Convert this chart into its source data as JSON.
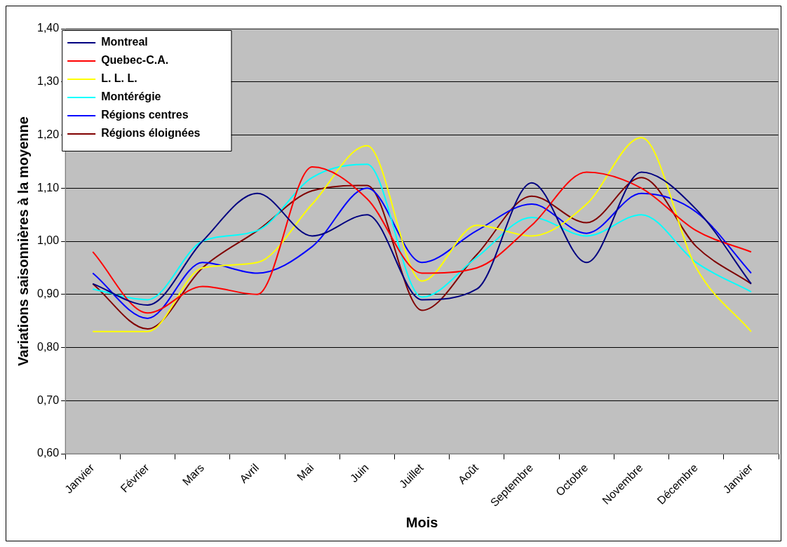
{
  "chart_data": {
    "type": "line",
    "xlabel": "Mois",
    "ylabel": "Variations saisonnières à la moyenne",
    "categories": [
      "Janvier",
      "Février",
      "Mars",
      "Avril",
      "Mai",
      "Juin",
      "Juillet",
      "Août",
      "Septembre",
      "Octobre",
      "Novembre",
      "Décembre",
      "Janvier"
    ],
    "series": [
      {
        "name": "Montreal",
        "color": "#000080",
        "values": [
          0.92,
          0.88,
          1.0,
          1.09,
          1.01,
          1.05,
          0.89,
          0.91,
          1.11,
          0.96,
          1.13,
          1.06,
          0.92
        ]
      },
      {
        "name": "Quebec-C.A.",
        "color": "#ff0000",
        "values": [
          0.98,
          0.865,
          0.915,
          0.9,
          1.14,
          1.08,
          0.94,
          0.95,
          1.03,
          1.13,
          1.1,
          1.02,
          0.98
        ]
      },
      {
        "name": "L. L. L.",
        "color": "#ffff00",
        "values": [
          0.83,
          0.83,
          0.95,
          0.96,
          1.07,
          1.18,
          0.925,
          1.03,
          1.01,
          1.07,
          1.195,
          0.95,
          0.83
        ]
      },
      {
        "name": "Montérégie",
        "color": "#00ffff",
        "values": [
          0.91,
          0.89,
          1.0,
          1.02,
          1.12,
          1.145,
          0.895,
          0.97,
          1.045,
          1.01,
          1.05,
          0.96,
          0.905
        ]
      },
      {
        "name": "Régions centres",
        "color": "#0000ff",
        "values": [
          0.94,
          0.855,
          0.96,
          0.94,
          0.99,
          1.1,
          0.96,
          1.02,
          1.07,
          1.015,
          1.09,
          1.055,
          0.94
        ]
      },
      {
        "name": "Régions éloignées",
        "color": "#800000",
        "values": [
          0.92,
          0.835,
          0.95,
          1.02,
          1.095,
          1.105,
          0.87,
          0.975,
          1.085,
          1.035,
          1.12,
          0.99,
          0.92
        ]
      }
    ],
    "ylim": [
      0.6,
      1.4
    ],
    "yticks": [
      {
        "value": 0.6,
        "label": "0,60"
      },
      {
        "value": 0.7,
        "label": "0,70"
      },
      {
        "value": 0.8,
        "label": "0,80"
      },
      {
        "value": 0.9,
        "label": "0,90"
      },
      {
        "value": 1.0,
        "label": "1,00"
      },
      {
        "value": 1.1,
        "label": "1,10"
      },
      {
        "value": 1.2,
        "label": "1,20"
      },
      {
        "value": 1.3,
        "label": "1,30"
      },
      {
        "value": 1.4,
        "label": "1,40"
      }
    ],
    "grid": "y",
    "legend": "top left",
    "marker": "none",
    "line_style": "solid"
  }
}
